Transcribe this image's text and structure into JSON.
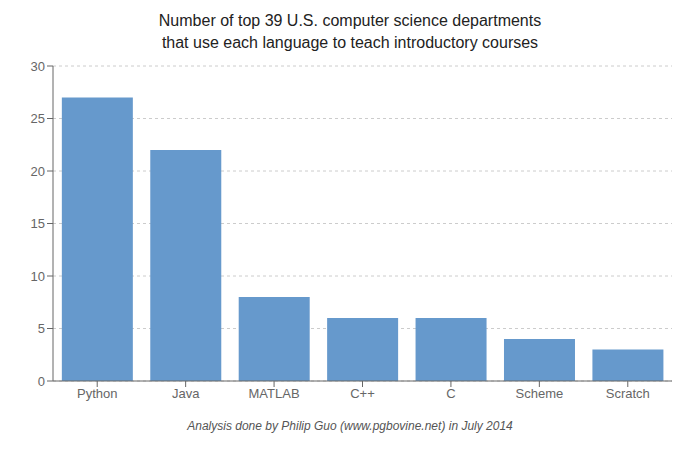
{
  "chart_data": {
    "type": "bar",
    "title": "Number of top 39 U.S. computer science departments\nthat use each language to teach introductory courses",
    "annotations": [
      "Analysis done by Philip Guo (www.pgbovine.net) in July 2014"
    ],
    "categories": [
      "Python",
      "Java",
      "MATLAB",
      "C++",
      "C",
      "Scheme",
      "Scratch"
    ],
    "values": [
      27,
      22,
      8,
      6,
      6,
      4,
      3
    ],
    "color": "#6699cc",
    "ylim": [
      0,
      30
    ],
    "yticks": [
      0,
      5,
      10,
      15,
      20,
      25,
      30
    ],
    "grid": true
  }
}
